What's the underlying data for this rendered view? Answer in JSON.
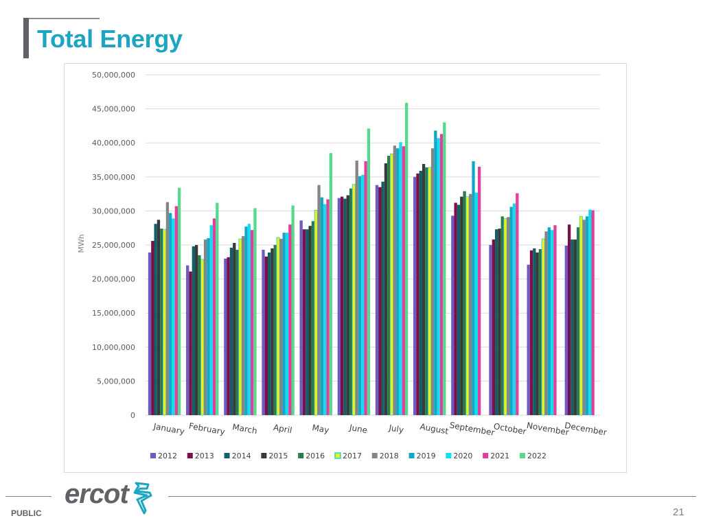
{
  "slide": {
    "title": "Total Energy",
    "footer_label": "PUBLIC",
    "page_number": "21",
    "logo_text": "ercot"
  },
  "chart_data": {
    "type": "bar",
    "title": "",
    "xlabel": "",
    "ylabel": "MWh",
    "ylim": [
      0,
      50000000
    ],
    "yticks": [
      0,
      5000000,
      10000000,
      15000000,
      20000000,
      25000000,
      30000000,
      35000000,
      40000000,
      45000000,
      50000000
    ],
    "ytick_labels": [
      "0",
      "5,000,000",
      "10,000,000",
      "15,000,000",
      "20,000,000",
      "25,000,000",
      "30,000,000",
      "35,000,000",
      "40,000,000",
      "45,000,000",
      "50,000,000"
    ],
    "grid": true,
    "legend_position": "bottom",
    "categories": [
      "January",
      "February",
      "March",
      "April",
      "May",
      "June",
      "July",
      "August",
      "September",
      "October",
      "November",
      "December"
    ],
    "series": [
      {
        "name": "2012",
        "color": "#6f5bbf",
        "values": [
          23900000,
          22000000,
          23000000,
          24300000,
          28600000,
          31900000,
          33800000,
          35000000,
          29300000,
          25000000,
          22100000,
          24900000
        ]
      },
      {
        "name": "2013",
        "color": "#7b0f4a",
        "values": [
          25600000,
          21100000,
          23200000,
          23300000,
          27300000,
          32100000,
          33500000,
          35500000,
          31200000,
          25800000,
          24200000,
          28000000
        ]
      },
      {
        "name": "2014",
        "color": "#135f66",
        "values": [
          28100000,
          24800000,
          24600000,
          23900000,
          27300000,
          31800000,
          34300000,
          35900000,
          30900000,
          27300000,
          24500000,
          25800000
        ]
      },
      {
        "name": "2015",
        "color": "#353c3c",
        "values": [
          28700000,
          25000000,
          25300000,
          24500000,
          27800000,
          32300000,
          37000000,
          36900000,
          32100000,
          27400000,
          23900000,
          25800000
        ]
      },
      {
        "name": "2016",
        "color": "#2d7a4f",
        "values": [
          27400000,
          23500000,
          24300000,
          25000000,
          28500000,
          33300000,
          38100000,
          36400000,
          32900000,
          29200000,
          24400000,
          27600000
        ]
      },
      {
        "name": "2017",
        "color": "#e9f01c",
        "border": "#2ad1e0",
        "values": [
          27300000,
          22900000,
          25900000,
          26100000,
          30100000,
          33900000,
          38400000,
          36400000,
          32100000,
          28900000,
          25900000,
          29200000
        ]
      },
      {
        "name": "2018",
        "color": "#858585",
        "values": [
          31300000,
          25800000,
          26300000,
          25900000,
          33800000,
          37400000,
          39600000,
          39200000,
          32500000,
          29100000,
          27000000,
          28700000
        ]
      },
      {
        "name": "2019",
        "color": "#13a7c7",
        "values": [
          29700000,
          26000000,
          27700000,
          26800000,
          32000000,
          35100000,
          39200000,
          41800000,
          37300000,
          30600000,
          27600000,
          29200000
        ]
      },
      {
        "name": "2020",
        "color": "#14dcef",
        "values": [
          28900000,
          27900000,
          28100000,
          26800000,
          31000000,
          35300000,
          40100000,
          40700000,
          32700000,
          31100000,
          27200000,
          30200000
        ]
      },
      {
        "name": "2021",
        "color": "#e03f9b",
        "values": [
          30700000,
          28900000,
          27200000,
          28000000,
          31700000,
          37300000,
          39500000,
          41300000,
          36500000,
          32600000,
          27900000,
          30100000
        ]
      },
      {
        "name": "2022",
        "color": "#57d88f",
        "values": [
          33400000,
          31200000,
          30400000,
          30800000,
          38500000,
          42100000,
          45900000,
          43000000,
          null,
          null,
          null,
          null
        ]
      }
    ]
  }
}
